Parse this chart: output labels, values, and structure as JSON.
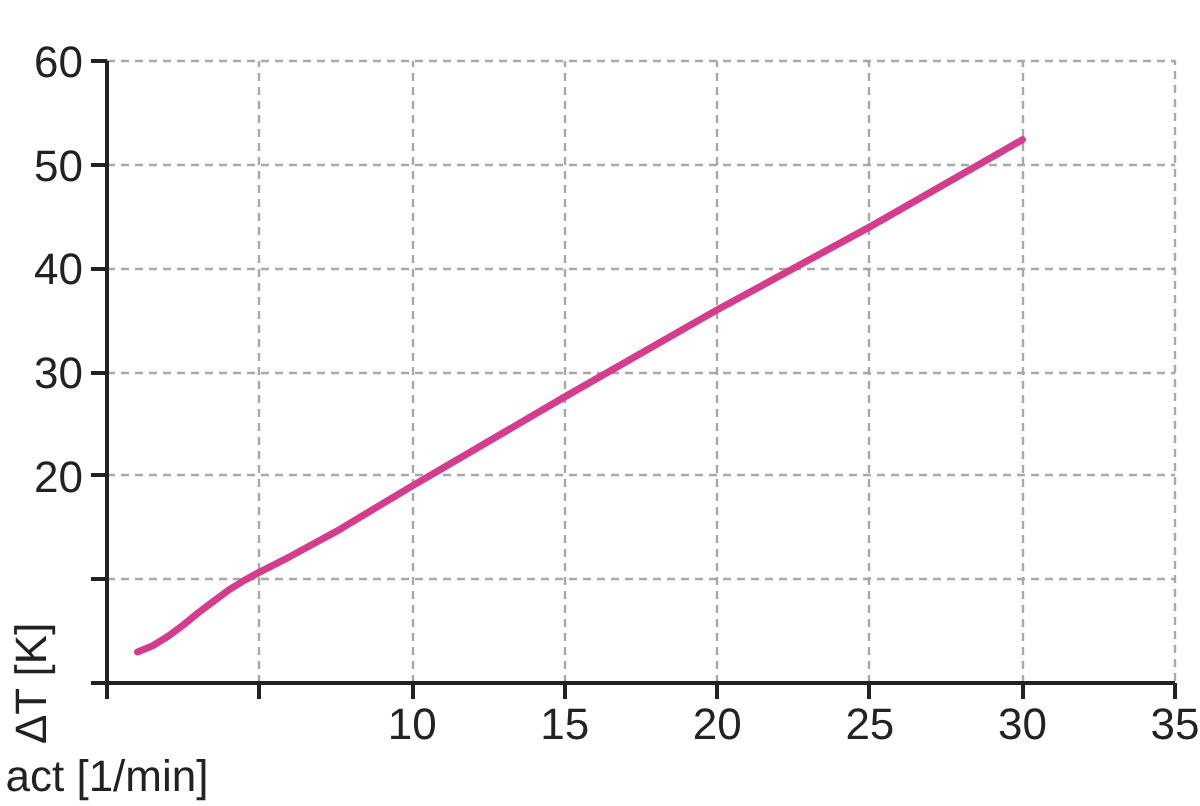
{
  "chart_data": {
    "type": "line",
    "xlabel": "act [1/min]",
    "ylabel": "ΔT [K]",
    "x": [
      1,
      1.5,
      2,
      2.5,
      3,
      3.5,
      4,
      4.5,
      5,
      6,
      7.5,
      10,
      15,
      20,
      25,
      30
    ],
    "series": [
      {
        "color": "#d63c8c",
        "values": [
          3,
          3.6,
          4.5,
          5.6,
          6.8,
          7.9,
          9.0,
          9.9,
          10.7,
          12.2,
          14.6,
          19.0,
          27.6,
          36.0,
          44.0,
          52.4
        ]
      }
    ],
    "xlim": [
      0,
      35
    ],
    "ylim": [
      0,
      60
    ],
    "xticks": [
      {
        "value": 0,
        "label": null
      },
      {
        "value": 5,
        "label": null
      },
      10,
      15,
      20,
      25,
      30,
      35
    ],
    "yticks": [
      {
        "value": 0,
        "label": null
      },
      {
        "value": 10,
        "label": null
      },
      20,
      30,
      40,
      50,
      60
    ],
    "grid": true,
    "line_style": "solid"
  }
}
